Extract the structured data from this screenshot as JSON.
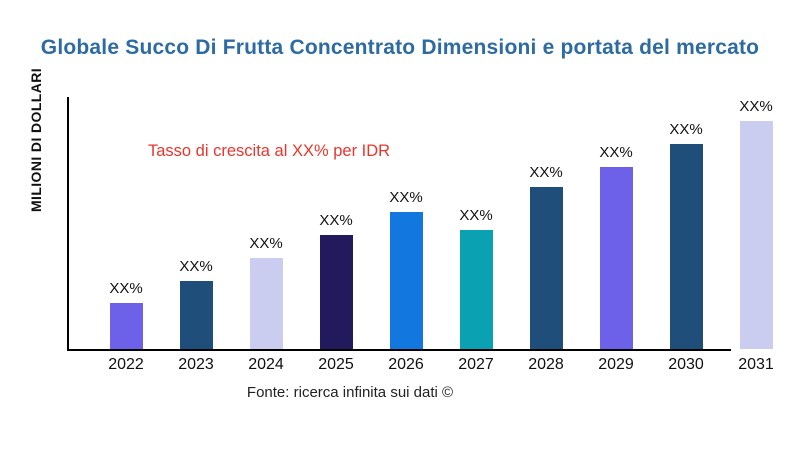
{
  "chart_data": {
    "type": "bar",
    "title": "Globale Succo Di Frutta Concentrato Dimensioni e portata del mercato",
    "title_color": "#2d6ba2",
    "ylabel": "MILIONI DI DOLLARI",
    "xlabel": "",
    "categories": [
      "2022",
      "2023",
      "2024",
      "2025",
      "2026",
      "2027",
      "2028",
      "2029",
      "2030",
      "2031"
    ],
    "relative_heights": [
      20,
      30,
      40,
      50,
      60,
      52,
      71,
      80,
      90,
      100
    ],
    "bar_labels": [
      "XX%",
      "XX%",
      "XX%",
      "XX%",
      "XX%",
      "XX%",
      "XX%",
      "XX%",
      "XX%",
      "XX%"
    ],
    "bar_colors": [
      "#6d61e9",
      "#1f4e7b",
      "#cbcdf0",
      "#221a5c",
      "#1377e0",
      "#0aa2b2",
      "#1f4e7b",
      "#6d61e9",
      "#1f4e7b",
      "#cbcdf0"
    ],
    "annotation": "Tasso di crescita al XX% per IDR",
    "annotation_color": "#e8352d",
    "grid": false,
    "legend": false,
    "axis_color": "#000000"
  },
  "source": {
    "text": "Fonte: ricerca infinita sui dati ©"
  }
}
